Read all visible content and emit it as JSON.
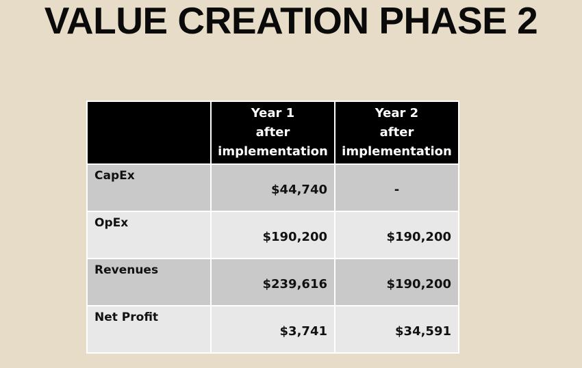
{
  "title": "VALUE CREATION PHASE 2",
  "table": {
    "headers": [
      "",
      "Year 1 after implementation",
      "Year 2 after implementation"
    ],
    "header_lines": [
      [
        "Year 1",
        "after",
        "implementation"
      ],
      [
        "Year 2",
        "after",
        "implementation"
      ]
    ],
    "rows": [
      {
        "label": "CapEx",
        "year1": "$44,740",
        "year2": "-"
      },
      {
        "label": "OpEx",
        "year1": "$190,200",
        "year2": "$190,200"
      },
      {
        "label": "Revenues",
        "year1": "$239,616",
        "year2": "$190,200"
      },
      {
        "label": "Net Profit",
        "year1": "$3,741",
        "year2": "$34,591"
      }
    ]
  }
}
